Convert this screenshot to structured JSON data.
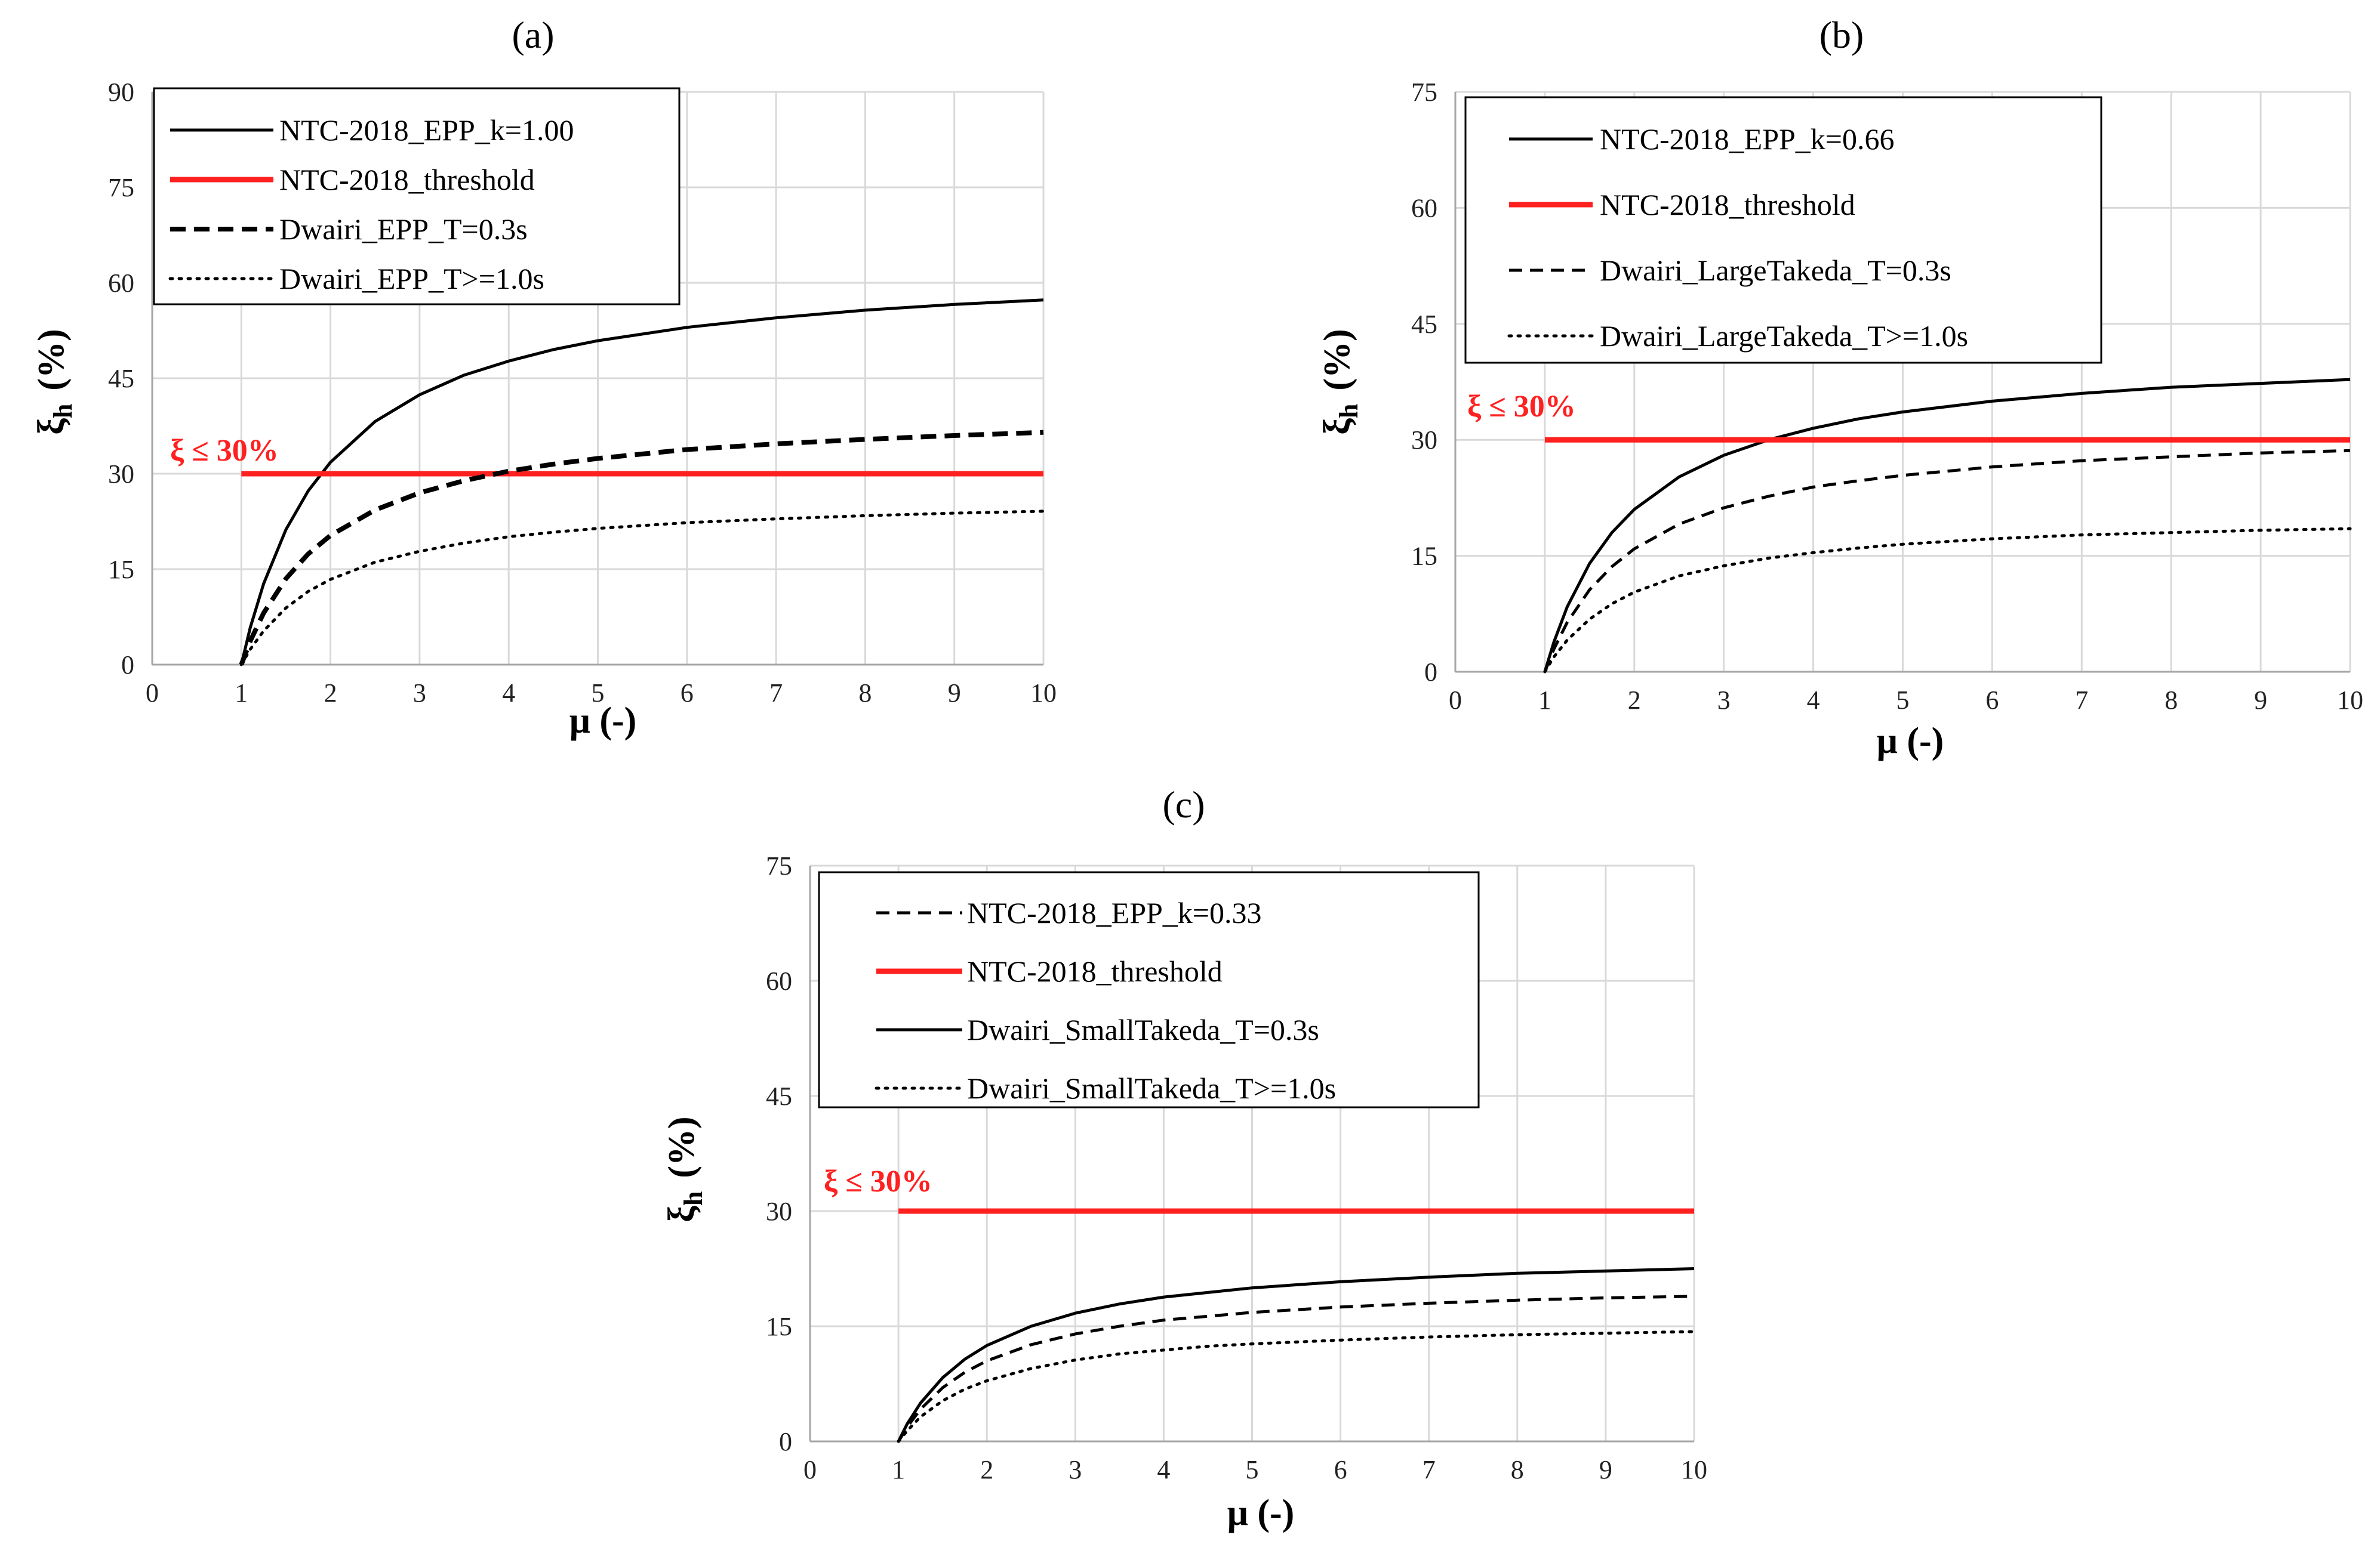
{
  "chart_data": [
    {
      "type": "line",
      "panel_label": "(a)",
      "xlabel": "μ (-)",
      "ylabel": "ξh (%)",
      "ylabel_main": "ξ",
      "ylabel_sub": "h",
      "ylabel_units": "(%)",
      "xlim": [
        0,
        10
      ],
      "ylim": [
        0,
        90
      ],
      "xticks": [
        "0",
        "1",
        "2",
        "3",
        "4",
        "5",
        "6",
        "7",
        "8",
        "9",
        "10"
      ],
      "yticks": [
        "0",
        "15",
        "30",
        "45",
        "60",
        "75",
        "90"
      ],
      "grid": true,
      "legend_position": "top-left",
      "annotation": "ξ ≤ 30%",
      "series": [
        {
          "name": "NTC-2018_EPP_k=1.00",
          "style": "solid",
          "color": "#000000",
          "x": [
            1,
            1.1,
            1.25,
            1.5,
            1.75,
            2,
            2.5,
            3,
            3.5,
            4,
            4.5,
            5,
            6,
            7,
            8,
            9,
            10
          ],
          "y": [
            0,
            5.8,
            12.7,
            21.2,
            27.3,
            31.8,
            38.2,
            42.4,
            45.5,
            47.7,
            49.5,
            50.9,
            53.0,
            54.5,
            55.7,
            56.6,
            57.3
          ]
        },
        {
          "name": "NTC-2018_threshold",
          "style": "solid",
          "color": "#ff2020",
          "x": [
            1,
            10
          ],
          "y": [
            30,
            30
          ]
        },
        {
          "name": "Dwairi_EPP_T=0.3s",
          "style": "dashed",
          "color": "#000000",
          "x": [
            1,
            1.1,
            1.25,
            1.5,
            1.75,
            2,
            2.5,
            3,
            3.5,
            4,
            4.5,
            5,
            6,
            7,
            8,
            9,
            10
          ],
          "y": [
            0,
            3.7,
            8.1,
            13.5,
            17.4,
            20.3,
            24.3,
            27.0,
            28.9,
            30.4,
            31.5,
            32.4,
            33.8,
            34.7,
            35.4,
            36.0,
            36.5
          ]
        },
        {
          "name": "Dwairi_EPP_T>=1.0s",
          "style": "dotted",
          "color": "#000000",
          "x": [
            1,
            1.1,
            1.25,
            1.5,
            1.75,
            2,
            2.5,
            3,
            3.5,
            4,
            4.5,
            5,
            6,
            7,
            8,
            9,
            10
          ],
          "y": [
            0,
            2.4,
            5.3,
            8.9,
            11.5,
            13.4,
            16.1,
            17.8,
            19.1,
            20.1,
            20.8,
            21.4,
            22.3,
            22.9,
            23.4,
            23.8,
            24.1
          ]
        }
      ]
    },
    {
      "type": "line",
      "panel_label": "(b)",
      "xlabel": "μ (-)",
      "ylabel": "ξh (%)",
      "ylabel_main": "ξ",
      "ylabel_sub": "h",
      "ylabel_units": "(%)",
      "xlim": [
        0,
        10
      ],
      "ylim": [
        0,
        75
      ],
      "xticks": [
        "0",
        "1",
        "2",
        "3",
        "4",
        "5",
        "6",
        "7",
        "8",
        "9",
        "10"
      ],
      "yticks": [
        "0",
        "15",
        "30",
        "45",
        "60",
        "75"
      ],
      "grid": true,
      "legend_position": "top-left",
      "annotation": "ξ ≤ 30%",
      "series": [
        {
          "name": "NTC-2018_EPP_k=0.66",
          "style": "solid",
          "color": "#000000",
          "x": [
            1,
            1.1,
            1.25,
            1.5,
            1.75,
            2,
            2.5,
            3,
            3.5,
            4,
            4.5,
            5,
            6,
            7,
            8,
            9,
            10
          ],
          "y": [
            0,
            3.8,
            8.4,
            14.0,
            18.0,
            21.0,
            25.2,
            28.0,
            30.0,
            31.5,
            32.7,
            33.6,
            35.0,
            36.0,
            36.8,
            37.3,
            37.8
          ]
        },
        {
          "name": "NTC-2018_threshold",
          "style": "solid",
          "color": "#ff2020",
          "x": [
            1,
            10
          ],
          "y": [
            30,
            30
          ]
        },
        {
          "name": "Dwairi_LargeTakeda_T=0.3s",
          "style": "dashed",
          "color": "#000000",
          "x": [
            1,
            1.1,
            1.25,
            1.5,
            1.75,
            2,
            2.5,
            3,
            3.5,
            4,
            4.5,
            5,
            6,
            7,
            8,
            9,
            10
          ],
          "y": [
            0,
            2.9,
            6.4,
            10.6,
            13.6,
            15.9,
            19.1,
            21.2,
            22.7,
            23.9,
            24.7,
            25.4,
            26.5,
            27.3,
            27.8,
            28.3,
            28.6
          ]
        },
        {
          "name": "Dwairi_LargeTakeda_T>=1.0s",
          "style": "dotted",
          "color": "#000000",
          "x": [
            1,
            1.1,
            1.25,
            1.5,
            1.75,
            2,
            2.5,
            3,
            3.5,
            4,
            4.5,
            5,
            6,
            7,
            8,
            9,
            10
          ],
          "y": [
            0,
            1.9,
            4.1,
            6.8,
            8.8,
            10.3,
            12.4,
            13.7,
            14.7,
            15.4,
            16.0,
            16.5,
            17.2,
            17.7,
            18.0,
            18.3,
            18.5
          ]
        }
      ]
    },
    {
      "type": "line",
      "panel_label": "(c)",
      "xlabel": "μ (-)",
      "ylabel": "ξh (%)",
      "ylabel_main": "ξ",
      "ylabel_sub": "h",
      "ylabel_units": "(%)",
      "xlim": [
        0,
        10
      ],
      "ylim": [
        0,
        75
      ],
      "xticks": [
        "0",
        "1",
        "2",
        "3",
        "4",
        "5",
        "6",
        "7",
        "8",
        "9",
        "10"
      ],
      "yticks": [
        "0",
        "15",
        "30",
        "45",
        "60",
        "75"
      ],
      "grid": true,
      "legend_position": "top-left",
      "annotation": "ξ ≤ 30%",
      "series": [
        {
          "name": "NTC-2018_EPP_k=0.33",
          "style": "dashed",
          "color": "#000000",
          "x": [
            1,
            1.1,
            1.25,
            1.5,
            1.75,
            2,
            2.5,
            3,
            3.5,
            4,
            4.5,
            5,
            6,
            7,
            8,
            9,
            10
          ],
          "y": [
            0,
            1.9,
            4.2,
            7.0,
            9.0,
            10.5,
            12.6,
            14.0,
            15.0,
            15.8,
            16.3,
            16.8,
            17.5,
            18.0,
            18.4,
            18.7,
            18.9
          ]
        },
        {
          "name": "NTC-2018_threshold",
          "style": "solid",
          "color": "#ff2020",
          "x": [
            1,
            10
          ],
          "y": [
            30,
            30
          ]
        },
        {
          "name": "Dwairi_SmallTakeda_T=0.3s",
          "style": "solid",
          "color": "#000000",
          "x": [
            1,
            1.1,
            1.25,
            1.5,
            1.75,
            2,
            2.5,
            3,
            3.5,
            4,
            4.5,
            5,
            6,
            7,
            8,
            9,
            10
          ],
          "y": [
            0,
            2.3,
            5.0,
            8.3,
            10.7,
            12.5,
            15.0,
            16.7,
            17.9,
            18.8,
            19.4,
            20.0,
            20.8,
            21.4,
            21.9,
            22.2,
            22.5
          ]
        },
        {
          "name": "Dwairi_SmallTakeda_T>=1.0s",
          "style": "dotted",
          "color": "#000000",
          "x": [
            1,
            1.1,
            1.25,
            1.5,
            1.75,
            2,
            2.5,
            3,
            3.5,
            4,
            4.5,
            5,
            6,
            7,
            8,
            9,
            10
          ],
          "y": [
            0,
            1.4,
            3.2,
            5.3,
            6.8,
            7.9,
            9.5,
            10.6,
            11.4,
            11.9,
            12.4,
            12.7,
            13.2,
            13.6,
            13.9,
            14.1,
            14.3
          ]
        }
      ]
    }
  ]
}
